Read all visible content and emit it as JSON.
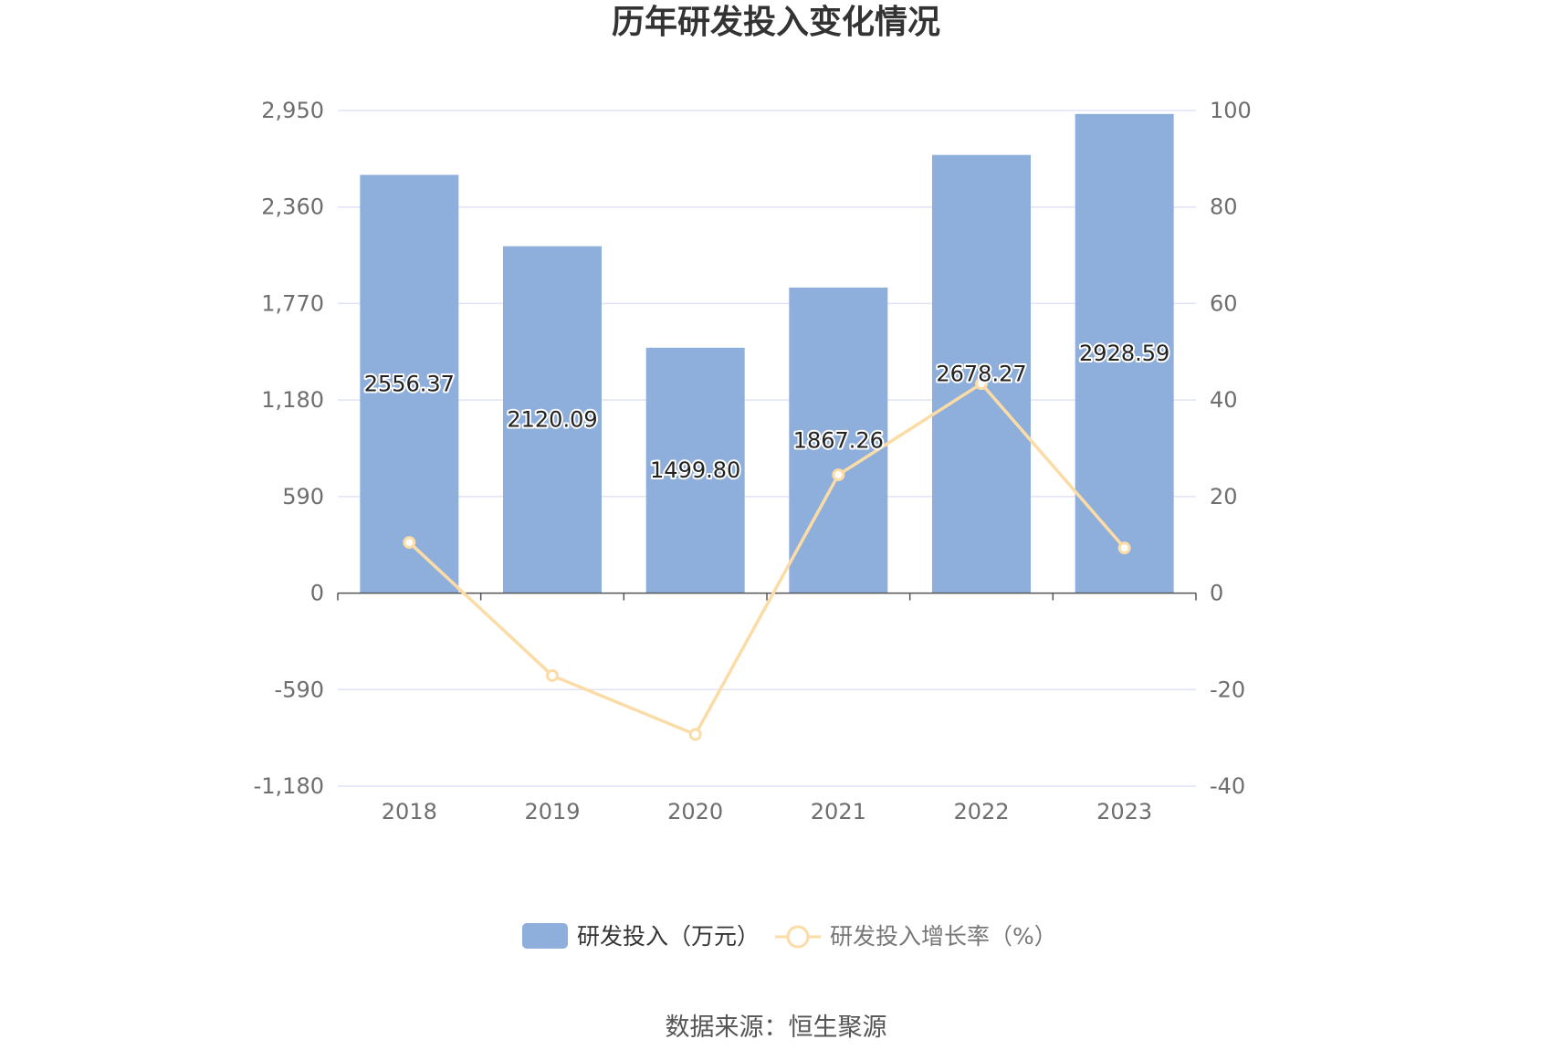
{
  "title": "历年研发投入变化情况",
  "source": "数据来源：恒生聚源",
  "colors": {
    "bar": "#8eaedb",
    "line": "#fbdca6",
    "grid": "#dfe3f5",
    "axis": "#555555",
    "text": "#6e6e6e"
  },
  "chart_data": {
    "type": "bar",
    "categories": [
      "2018",
      "2019",
      "2020",
      "2021",
      "2022",
      "2023"
    ],
    "series": [
      {
        "name": "研发投入（万元）",
        "type": "bar",
        "axis": "left",
        "values": [
          2556.37,
          2120.09,
          1499.8,
          1867.26,
          2678.27,
          2928.59
        ],
        "labels": [
          "2556.37",
          "2120.09",
          "1499.80",
          "1867.26",
          "2678.27",
          "2928.59"
        ]
      },
      {
        "name": "研发投入增长率（%）",
        "type": "line",
        "axis": "right",
        "values": [
          10.5,
          -17.1,
          -29.3,
          24.5,
          43.4,
          9.35
        ]
      }
    ],
    "y_left": {
      "min": -1180,
      "max": 2950,
      "ticks": [
        -1180,
        -590,
        0,
        590,
        1180,
        1770,
        2360,
        2950
      ],
      "tick_labels": [
        "-1,180",
        "-590",
        "0",
        "590",
        "1,180",
        "1,770",
        "2,360",
        "2,950"
      ]
    },
    "y_right": {
      "min": -40,
      "max": 100,
      "ticks": [
        -40,
        -20,
        0,
        20,
        40,
        60,
        80,
        100
      ],
      "tick_labels": [
        "-40",
        "-20",
        "0",
        "20",
        "40",
        "60",
        "80",
        "100"
      ]
    },
    "grid": true,
    "legend_position": "bottom"
  }
}
